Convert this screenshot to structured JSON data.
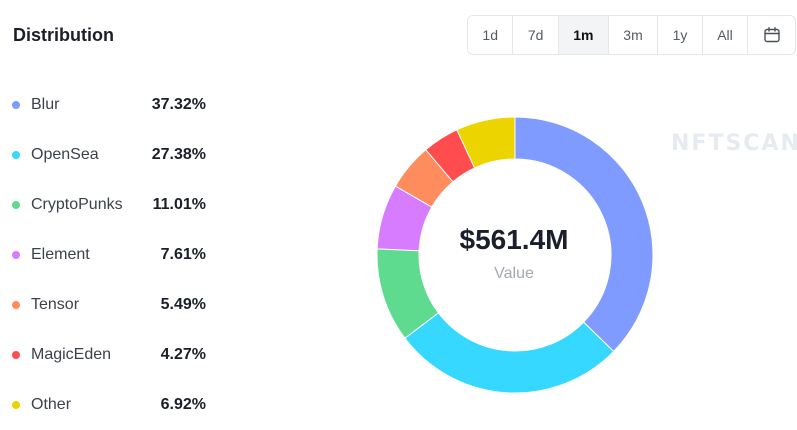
{
  "header": {
    "title": "Distribution"
  },
  "time_ranges": {
    "options": [
      "1d",
      "7d",
      "1m",
      "3m",
      "1y",
      "All"
    ],
    "selected": "1m",
    "calendar_icon": "calendar-icon"
  },
  "legend": [
    {
      "name": "Blur",
      "percent": "37.32%",
      "color": "#7f9bff"
    },
    {
      "name": "OpenSea",
      "percent": "27.38%",
      "color": "#36d8ff"
    },
    {
      "name": "CryptoPunks",
      "percent": "11.01%",
      "color": "#5fdb8f"
    },
    {
      "name": "Element",
      "percent": "7.61%",
      "color": "#d77bff"
    },
    {
      "name": "Tensor",
      "percent": "5.49%",
      "color": "#ff8c5c"
    },
    {
      "name": "MagicEden",
      "percent": "4.27%",
      "color": "#ff4d4f"
    },
    {
      "name": "Other",
      "percent": "6.92%",
      "color": "#ecd400"
    }
  ],
  "center": {
    "value": "$561.4M",
    "label": "Value"
  },
  "watermark": "NFTSCAN",
  "chart_data": {
    "type": "pie",
    "variant": "donut",
    "categories": [
      "Blur",
      "OpenSea",
      "CryptoPunks",
      "Element",
      "Tensor",
      "MagicEden",
      "Other"
    ],
    "values": [
      37.32,
      27.38,
      11.01,
      7.61,
      5.49,
      4.27,
      6.92
    ],
    "colors": [
      "#7f9bff",
      "#36d8ff",
      "#5fdb8f",
      "#d77bff",
      "#ff8c5c",
      "#ff4d4f",
      "#ecd400"
    ],
    "title": "Distribution",
    "center_value": "$561.4M",
    "center_label": "Value",
    "legend_position": "left"
  }
}
